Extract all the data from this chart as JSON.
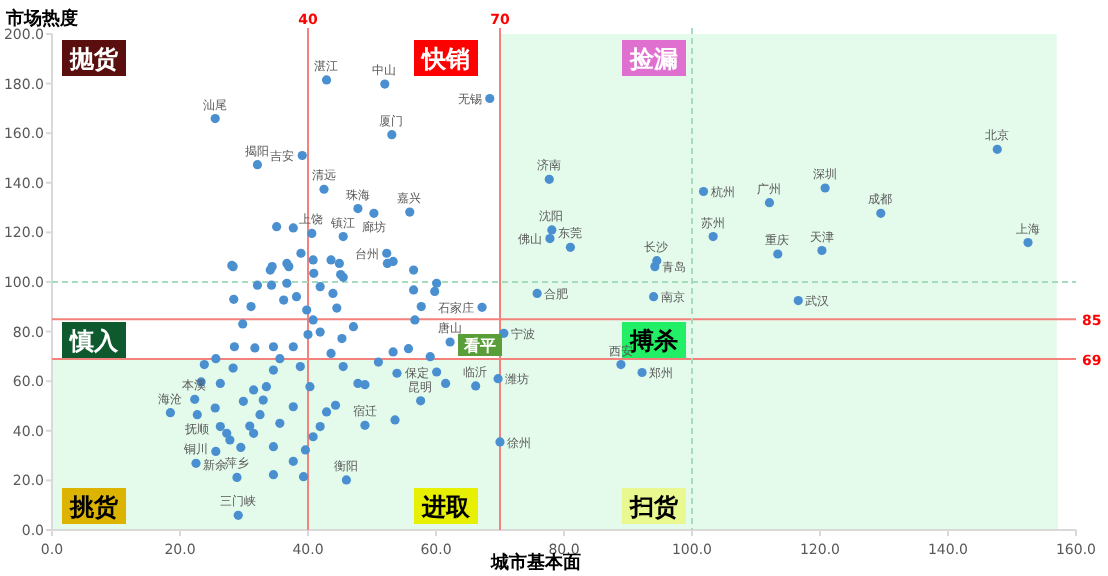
{
  "chart_data": {
    "type": "scatter",
    "xlabel": "城市基本面",
    "ylabel": "市场热度",
    "marker": "circle",
    "grid": false,
    "xlim": [
      0,
      160
    ],
    "ylim": [
      0,
      200
    ],
    "xticks": [
      {
        "value": 0,
        "label": "0.0"
      },
      {
        "value": 20,
        "label": "20.0"
      },
      {
        "value": 40,
        "label": "40.0"
      },
      {
        "value": 60,
        "label": "60.0"
      },
      {
        "value": 80,
        "label": "80.0"
      },
      {
        "value": 100,
        "label": "100.0"
      },
      {
        "value": 120,
        "label": "120.0"
      },
      {
        "value": 140,
        "label": "140.0"
      },
      {
        "value": 160,
        "label": "160.0"
      }
    ],
    "yticks": [
      {
        "value": 0,
        "label": "0.0"
      },
      {
        "value": 20,
        "label": "20.0"
      },
      {
        "value": 40,
        "label": "40.0"
      },
      {
        "value": 60,
        "label": "60.0"
      },
      {
        "value": 80,
        "label": "80.0"
      },
      {
        "value": 100,
        "label": "100.0"
      },
      {
        "value": 120,
        "label": "120.0"
      },
      {
        "value": 140,
        "label": "140.0"
      },
      {
        "value": 160,
        "label": "160.0"
      },
      {
        "value": 180,
        "label": "180.0"
      },
      {
        "value": 200,
        "label": "200.0"
      }
    ],
    "bands": [
      {
        "axis": "x",
        "from": 70,
        "to": 157,
        "color": "#e4fbec"
      },
      {
        "axis": "y",
        "from": 0,
        "to": 69,
        "color": "#e4fbec"
      }
    ],
    "ref_lines": [
      {
        "axis": "x",
        "value": 40,
        "label": "40",
        "color": "#f4827c",
        "line_style": "solid"
      },
      {
        "axis": "x",
        "value": 70,
        "label": "70",
        "color": "#f4827c",
        "line_style": "solid"
      },
      {
        "axis": "y",
        "value": 85,
        "label": "85",
        "color": "#f4827c",
        "line_style": "solid"
      },
      {
        "axis": "y",
        "value": 69,
        "label": "69",
        "color": "#f4827c",
        "line_style": "solid"
      },
      {
        "axis": "x",
        "value": 100,
        "color": "#a6dcbc",
        "line_style": "dashed"
      },
      {
        "axis": "y",
        "value": 100,
        "color": "#a6dcbc",
        "line_style": "dashed"
      }
    ],
    "series": [
      {
        "color": "#4a90d0",
        "x": [
          42.9,
          52.0,
          68.4,
          25.5,
          53.1,
          39.1,
          32.1,
          42.5,
          47.8,
          50.3,
          55.9,
          77.7,
          78.1,
          77.8,
          81.0,
          101.8,
          112.1,
          120.8,
          129.5,
          147.7,
          152.5,
          103.3,
          113.4,
          120.3,
          94.5,
          94.2,
          75.8,
          94.0,
          116.6,
          88.9,
          92.2,
          70.6,
          67.2,
          69.7,
          70.0,
          57.6,
          29.1,
          18.5,
          22.3,
          22.7,
          22.5,
          25.6,
          28.9,
          48.9,
          52.3,
          45.5,
          40.6,
          60.1,
          66.2,
          62.2,
          46.0,
          23.3,
          25.5,
          26.3,
          27.3,
          27.8,
          29.5,
          30.9,
          31.5,
          32.5,
          33.0,
          33.5,
          34.6,
          35.6,
          31.7,
          28.5,
          28.3,
          25.6,
          23.8,
          29.8,
          31.1,
          32.1,
          28.1,
          28.4,
          34.3,
          36.7,
          38.2,
          39.8,
          40.8,
          41.9,
          37.7,
          34.6,
          38.8,
          40.3,
          37.7,
          35.6,
          34.6,
          34.6,
          37.7,
          39.3,
          39.6,
          40.8,
          41.9,
          42.9,
          44.3,
          47.8,
          48.9,
          51.0,
          53.9,
          53.3,
          55.7,
          56.7,
          57.7,
          56.5,
          60.1,
          59.8,
          59.1,
          61.5,
          53.6,
          45.3,
          45.5,
          47.1,
          44.5,
          45.5,
          44.9,
          53.3,
          40.9,
          37.0,
          34.1,
          36.2,
          41.9,
          43.9,
          40.0,
          43.6,
          31.5,
          26.3,
          29.9,
          35.1,
          37.7,
          38.9,
          40.8,
          43.6,
          52.4,
          34.4,
          28.3,
          45.1,
          56.5,
          36.7
        ],
        "values": [
          181.5,
          179.8,
          174.0,
          165.9,
          159.4,
          151.0,
          147.3,
          137.4,
          129.6,
          127.7,
          128.2,
          141.4,
          121.0,
          117.5,
          114.0,
          136.5,
          132.0,
          137.9,
          127.7,
          153.5,
          115.9,
          118.3,
          111.3,
          112.7,
          108.6,
          106.2,
          95.4,
          94.1,
          92.5,
          66.7,
          63.5,
          79.3,
          89.8,
          61.0,
          35.5,
          52.1,
          5.9,
          47.3,
          52.7,
          46.5,
          26.9,
          31.7,
          21.2,
          42.2,
          111.6,
          118.3,
          119.6,
          63.7,
          58.1,
          75.8,
          20.2,
          59.7,
          49.2,
          41.7,
          39.0,
          36.3,
          33.3,
          41.9,
          39.0,
          46.5,
          52.4,
          57.8,
          64.5,
          69.1,
          73.4,
          73.9,
          65.3,
          69.1,
          66.7,
          83.1,
          90.1,
          98.7,
          106.7,
          93.0,
          98.7,
          99.5,
          94.1,
          88.7,
          84.7,
          79.8,
          73.9,
          73.9,
          65.9,
          57.8,
          49.7,
          43.0,
          33.6,
          22.3,
          27.7,
          21.5,
          32.3,
          37.6,
          41.7,
          47.6,
          50.3,
          59.1,
          58.6,
          67.7,
          63.2,
          71.8,
          73.1,
          84.7,
          90.1,
          96.8,
          99.5,
          96.2,
          69.9,
          59.1,
          44.4,
          77.2,
          65.9,
          82.0,
          89.5,
          101.9,
          107.5,
          108.3,
          103.5,
          106.2,
          104.8,
          92.7,
          98.1,
          95.4,
          78.8,
          71.2,
          56.5,
          59.1,
          51.9,
          122.3,
          121.8,
          111.6,
          108.9,
          108.9,
          107.5,
          106.2,
          106.2,
          103.0,
          104.8,
          107.5
        ]
      }
    ],
    "annotations": [
      "抛货",
      "快销",
      "捡漏",
      "慎入",
      "搏杀",
      "看平",
      "挑货",
      "进取",
      "扫货",
      {
        "text": "湛江",
        "x": 42.9,
        "y": 181.5
      },
      {
        "text": "中山",
        "x": 52.0,
        "y": 179.8
      },
      {
        "text": "无锡",
        "x": 68.4,
        "y": 174.0
      },
      {
        "text": "汕尾",
        "x": 25.5,
        "y": 165.9
      },
      {
        "text": "厦门",
        "x": 53.1,
        "y": 159.4
      },
      {
        "text": "吉安",
        "x": 39.1,
        "y": 151.0
      },
      {
        "text": "揭阳",
        "x": 32.1,
        "y": 147.3
      },
      {
        "text": "清远",
        "x": 42.5,
        "y": 137.4
      },
      {
        "text": "珠海",
        "x": 47.8,
        "y": 129.6
      },
      {
        "text": "廊坊",
        "x": 50.3,
        "y": 127.7
      },
      {
        "text": "嘉兴",
        "x": 55.9,
        "y": 128.2
      },
      {
        "text": "济南",
        "x": 77.7,
        "y": 141.4
      },
      {
        "text": "沈阳",
        "x": 78.1,
        "y": 121.0
      },
      {
        "text": "佛山",
        "x": 77.8,
        "y": 117.5
      },
      {
        "text": "东莞",
        "x": 81.0,
        "y": 114.0
      },
      {
        "text": "杭州",
        "x": 101.8,
        "y": 136.5
      },
      {
        "text": "广州",
        "x": 112.1,
        "y": 132.0
      },
      {
        "text": "深圳",
        "x": 120.8,
        "y": 137.9
      },
      {
        "text": "成都",
        "x": 129.5,
        "y": 127.7
      },
      {
        "text": "北京",
        "x": 147.7,
        "y": 153.5
      },
      {
        "text": "上海",
        "x": 152.5,
        "y": 115.9
      },
      {
        "text": "苏州",
        "x": 103.3,
        "y": 118.3
      },
      {
        "text": "重庆",
        "x": 113.4,
        "y": 111.3
      },
      {
        "text": "天津",
        "x": 120.3,
        "y": 112.7
      },
      {
        "text": "长沙",
        "x": 94.5,
        "y": 108.6
      },
      {
        "text": "青岛",
        "x": 94.2,
        "y": 106.2
      },
      {
        "text": "合肥",
        "x": 75.8,
        "y": 95.4
      },
      {
        "text": "南京",
        "x": 94.0,
        "y": 94.1
      },
      {
        "text": "武汉",
        "x": 116.6,
        "y": 92.5
      },
      {
        "text": "西安",
        "x": 88.9,
        "y": 66.7
      },
      {
        "text": "郑州",
        "x": 92.2,
        "y": 63.5
      },
      {
        "text": "宁波",
        "x": 70.6,
        "y": 79.3
      },
      {
        "text": "石家庄",
        "x": 67.2,
        "y": 89.8
      },
      {
        "text": "潍坊",
        "x": 69.7,
        "y": 61.0
      },
      {
        "text": "徐州",
        "x": 70.0,
        "y": 35.5
      },
      {
        "text": "昆明",
        "x": 57.6,
        "y": 52.1
      },
      {
        "text": "三门峡",
        "x": 29.1,
        "y": 5.9
      },
      {
        "text": "海沧",
        "x": 18.5,
        "y": 47.3
      },
      {
        "text": "本溪",
        "x": 22.3,
        "y": 52.7
      },
      {
        "text": "抚顺",
        "x": 22.7,
        "y": 46.5
      },
      {
        "text": "铜川",
        "x": 22.5,
        "y": 26.9
      },
      {
        "text": "新余",
        "x": 25.6,
        "y": 31.7
      },
      {
        "text": "萍乡",
        "x": 28.9,
        "y": 21.2
      },
      {
        "text": "宿迁",
        "x": 48.9,
        "y": 42.2
      },
      {
        "text": "台州",
        "x": 52.3,
        "y": 111.6
      },
      {
        "text": "镇江",
        "x": 45.5,
        "y": 118.3
      },
      {
        "text": "上饶",
        "x": 40.6,
        "y": 119.6
      },
      {
        "text": "保定",
        "x": 60.1,
        "y": 63.7
      },
      {
        "text": "临沂",
        "x": 66.2,
        "y": 58.1
      },
      {
        "text": "唐山",
        "x": 62.2,
        "y": 75.8
      },
      {
        "text": "衡阳",
        "x": 46.0,
        "y": 20.2
      }
    ]
  }
}
